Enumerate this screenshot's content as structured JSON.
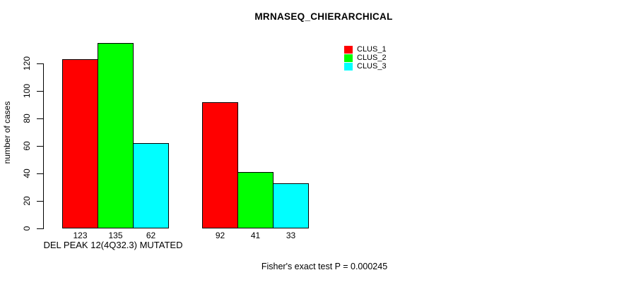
{
  "chart_data": {
    "type": "bar",
    "title": "MRNASEQ_CHIERARCHICAL",
    "ylabel": "number of cases",
    "xlabel": "DEL PEAK 12(4Q32.3) MUTATED",
    "footer": "Fisher's exact test P = 0.000245",
    "yticks": [
      0,
      20,
      40,
      60,
      80,
      100,
      120
    ],
    "ylim": [
      0,
      135
    ],
    "grid": false,
    "legend_position": "top-right",
    "legend": [
      {
        "label": "CLUS_1",
        "color": "#ff0000"
      },
      {
        "label": "CLUS_2",
        "color": "#00ff00"
      },
      {
        "label": "CLUS_3",
        "color": "#00ffff"
      }
    ],
    "groups": [
      {
        "bars": [
          {
            "series": "CLUS_1",
            "value": 123
          },
          {
            "series": "CLUS_2",
            "value": 135
          },
          {
            "series": "CLUS_3",
            "value": 62
          }
        ]
      },
      {
        "bars": [
          {
            "series": "CLUS_1",
            "value": 92
          },
          {
            "series": "CLUS_2",
            "value": 41
          },
          {
            "series": "CLUS_3",
            "value": 33
          }
        ]
      }
    ]
  }
}
